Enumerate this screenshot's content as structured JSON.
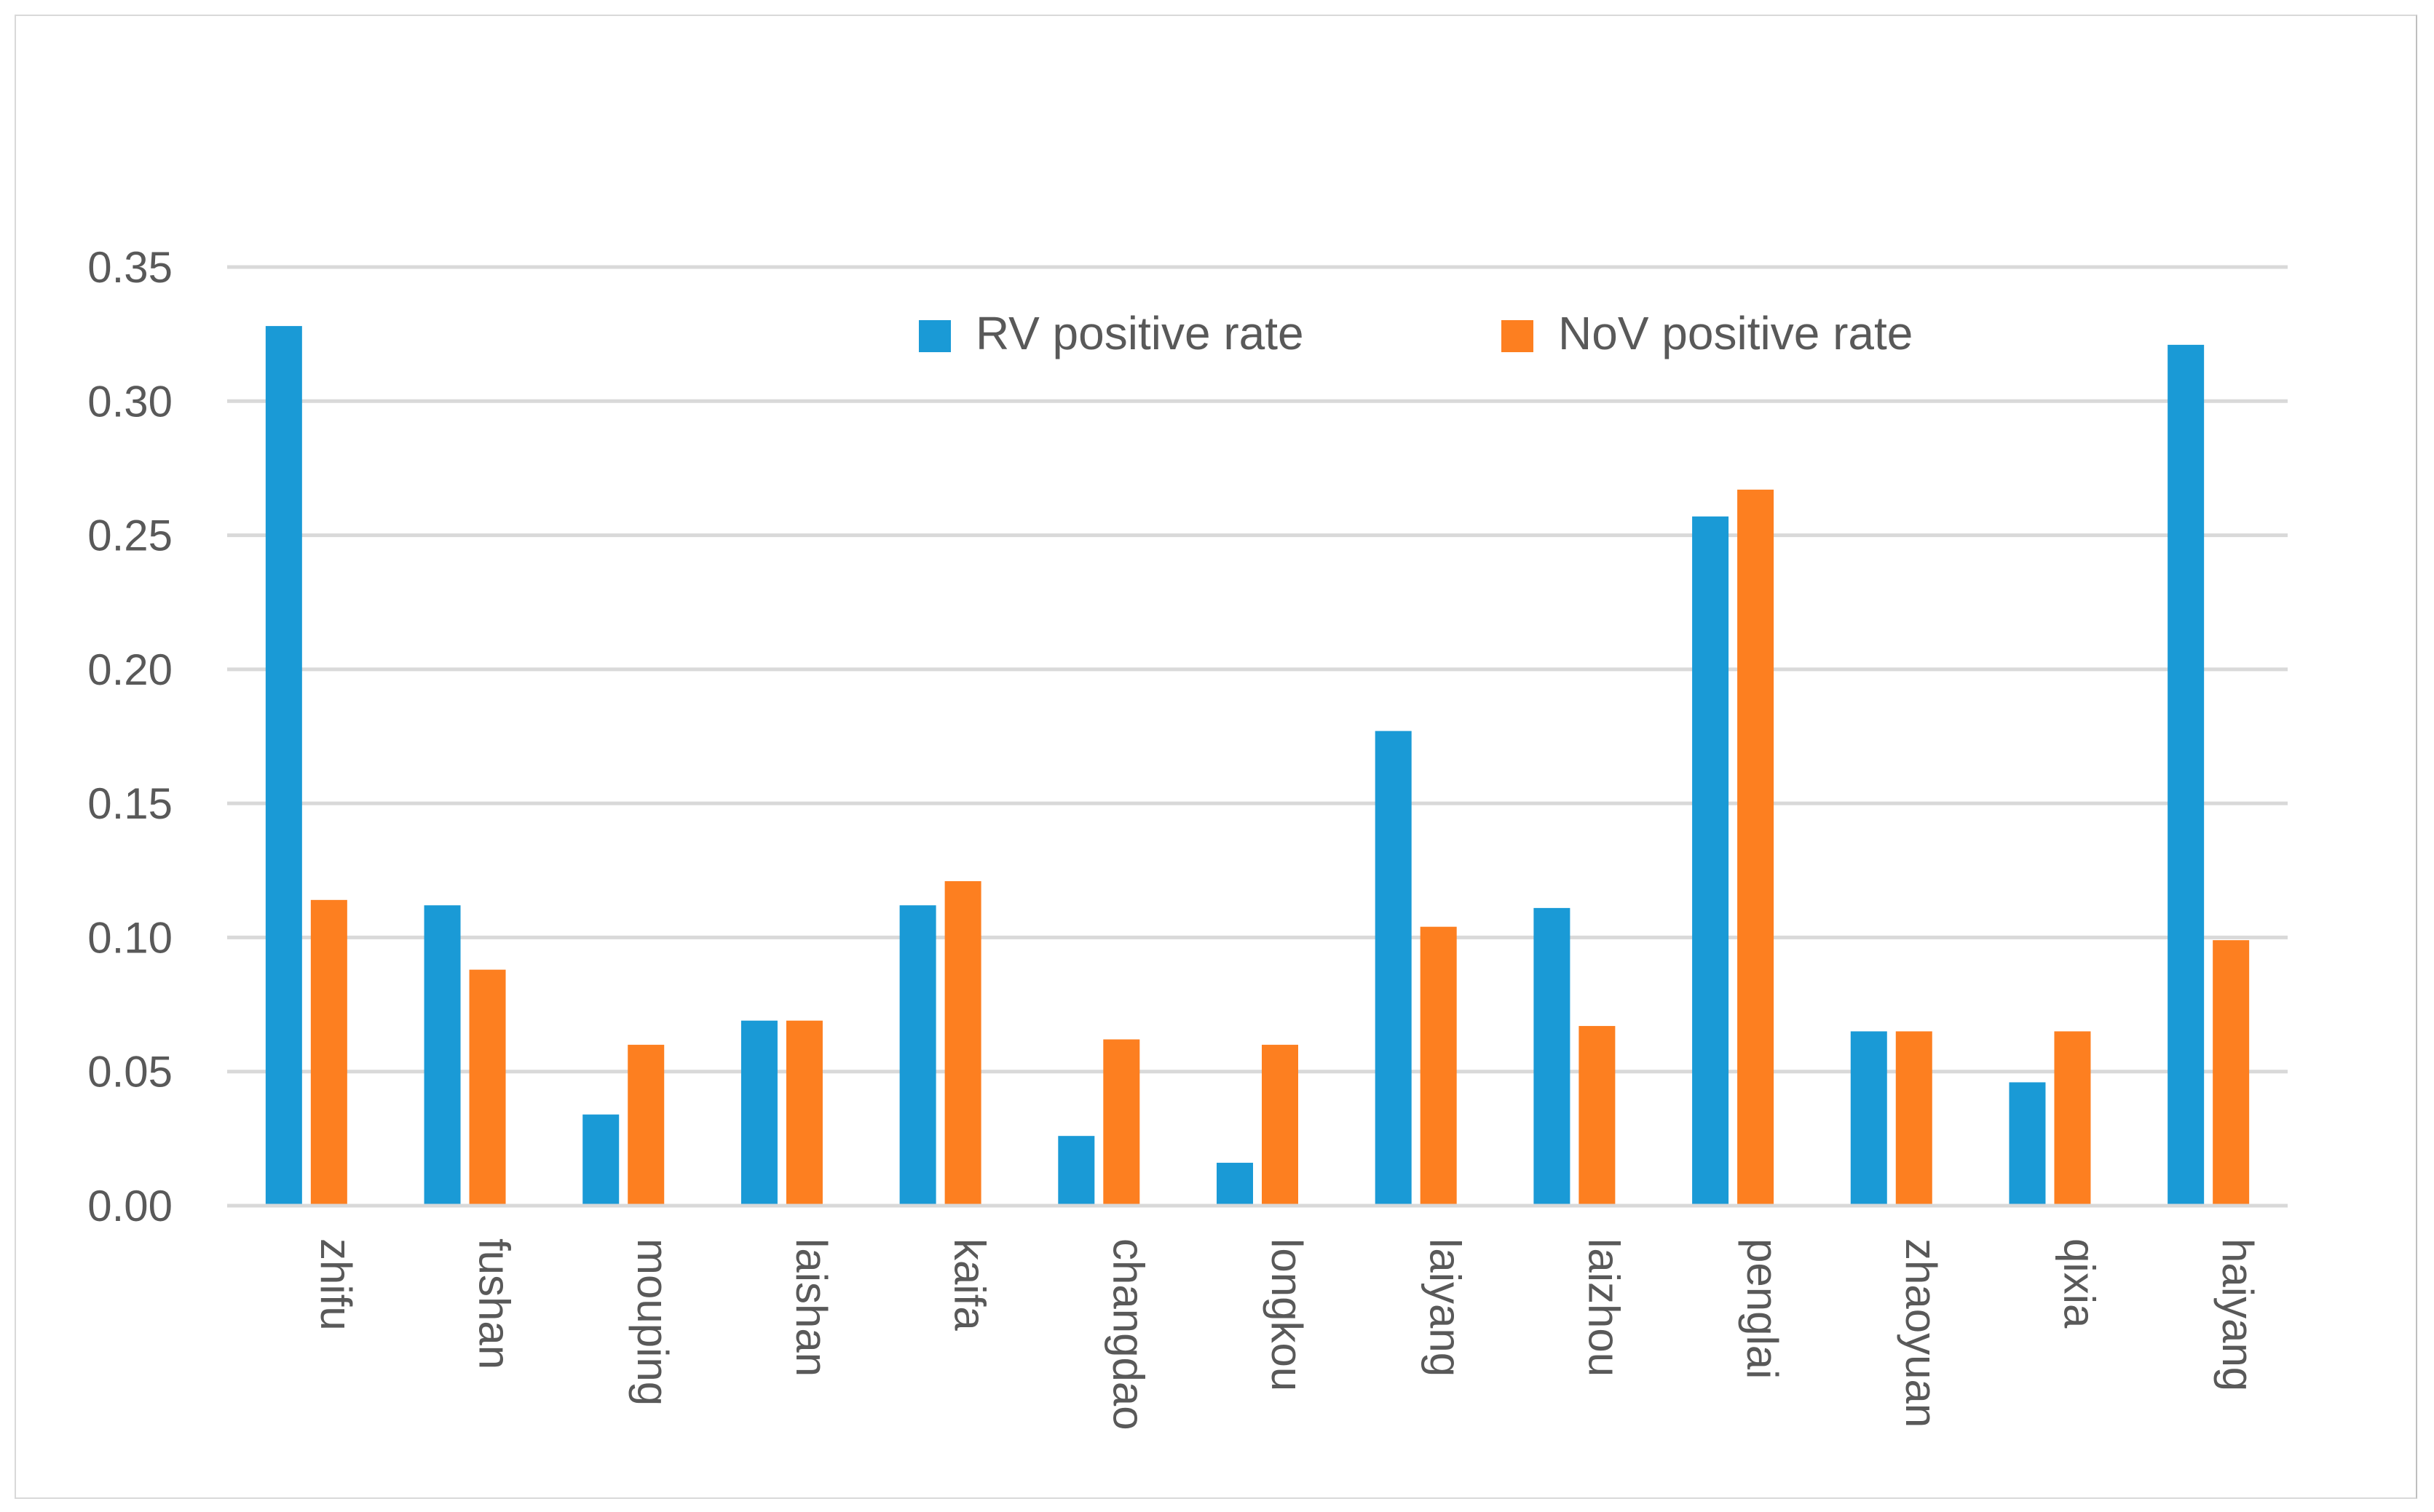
{
  "chart_data": {
    "type": "bar",
    "title": "",
    "xlabel": "",
    "ylabel": "",
    "ylim": [
      0,
      0.35
    ],
    "yticks": [
      "0.00",
      "0.05",
      "0.10",
      "0.15",
      "0.20",
      "0.25",
      "0.30",
      "0.35"
    ],
    "grid": true,
    "legend_position": "top-right",
    "categories": [
      "zhifu",
      "fushan",
      "mouping",
      "laishan",
      "kaifa",
      "changdao",
      "longkou",
      "laiyang",
      "laizhou",
      "penglai",
      "zhaoyuan",
      "qixia",
      "haiyang"
    ],
    "series": [
      {
        "name": "RV positive rate",
        "color": "#1a9ad6",
        "values": [
          0.328,
          0.112,
          0.034,
          0.069,
          0.112,
          0.026,
          0.016,
          0.177,
          0.111,
          0.257,
          0.065,
          0.046,
          0.321
        ]
      },
      {
        "name": "NoV positive rate",
        "color": "#fd7f20",
        "values": [
          0.114,
          0.088,
          0.06,
          0.069,
          0.121,
          0.062,
          0.06,
          0.104,
          0.067,
          0.267,
          0.065,
          0.065,
          0.099
        ]
      }
    ]
  }
}
